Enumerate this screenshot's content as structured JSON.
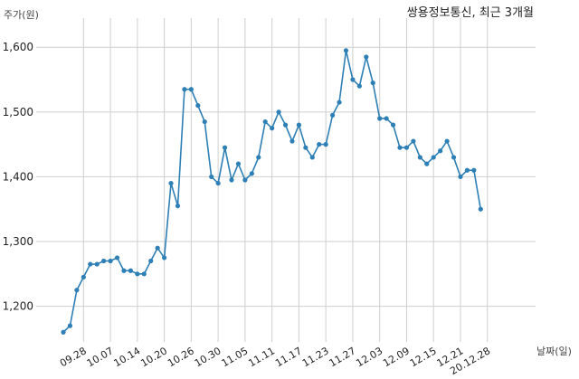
{
  "chart_data": {
    "type": "line",
    "title": "쌍용정보통신, 최근 3개월",
    "ylabel": "주가(원)",
    "xlabel": "날짜(일)",
    "ylim": [
      1145,
      1645
    ],
    "yticks": [
      1200,
      1300,
      1400,
      1500,
      1600
    ],
    "ytick_labels": [
      "1,200",
      "1,300",
      "1,400",
      "1,500",
      "1,600"
    ],
    "xtick_labels": [
      "09.28",
      "10.07",
      "10.14",
      "10.20",
      "10.26",
      "10.30",
      "11.05",
      "11.11",
      "11.17",
      "11.23",
      "11.27",
      "12.03",
      "12.09",
      "12.15",
      "12.21",
      "20.12.28"
    ],
    "xtick_index": [
      3,
      7,
      11,
      15,
      19,
      23,
      27,
      31,
      35,
      39,
      43,
      47,
      51,
      55,
      59,
      63
    ],
    "grid": true,
    "line_color": "#2e7fb5",
    "series": [
      {
        "values": [
          1160,
          1170,
          1225,
          1245,
          1265,
          1265,
          1270,
          1270,
          1275,
          1255,
          1255,
          1250,
          1250,
          1270,
          1290,
          1275,
          1390,
          1355,
          1535,
          1535,
          1510,
          1485,
          1400,
          1390,
          1445,
          1395,
          1420,
          1395,
          1405,
          1430,
          1485,
          1475,
          1500,
          1480,
          1455,
          1480,
          1445,
          1430,
          1450,
          1450,
          1495,
          1515,
          1595,
          1550,
          1540,
          1585,
          1545,
          1490,
          1490,
          1480,
          1445,
          1445,
          1455,
          1430,
          1420,
          1430,
          1440,
          1455,
          1430,
          1400,
          1410,
          1410,
          1350
        ]
      }
    ]
  }
}
